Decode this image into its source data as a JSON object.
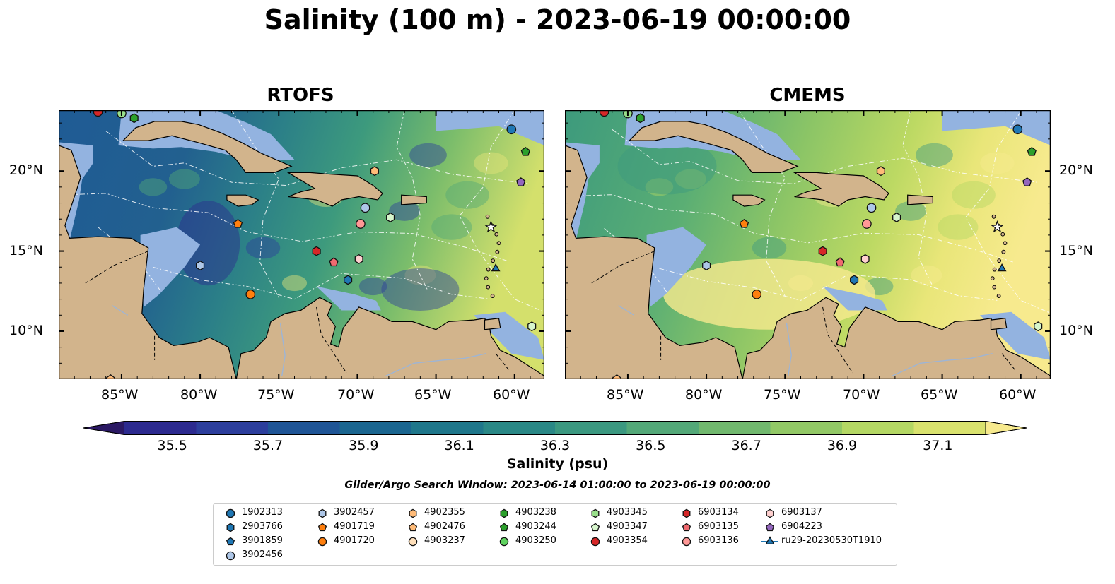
{
  "figure": {
    "title": "Salinity (100 m) - 2023-06-19 00:00:00"
  },
  "panels": [
    {
      "name": "RTOFS"
    },
    {
      "name": "CMEMS"
    }
  ],
  "axes": {
    "x_ticks": [
      "85°W",
      "80°W",
      "75°W",
      "70°W",
      "65°W",
      "60°W"
    ],
    "y_ticks": [
      "20°N",
      "15°N",
      "10°N"
    ]
  },
  "colorbar": {
    "label": "Salinity (psu)",
    "min": 35.5,
    "max": 37.1,
    "ticks": [
      "35.5",
      "35.7",
      "35.9",
      "36.1",
      "36.3",
      "36.5",
      "36.7",
      "36.9",
      "37.1"
    ],
    "colors": [
      "#2a1863",
      "#2c2a8f",
      "#2c3e9c",
      "#1f5596",
      "#1b6690",
      "#1f778b",
      "#2a8886",
      "#3b9880",
      "#53a878",
      "#71b86e",
      "#92c866",
      "#b4d764",
      "#d9e26e",
      "#f7ea8e"
    ]
  },
  "search_window": "Glider/Argo Search Window: 2023-06-14 01:00:00 to 2023-06-19 00:00:00",
  "legend": [
    {
      "label": "1902313",
      "marker": "circle",
      "color": "#1f77b4"
    },
    {
      "label": "2903766",
      "marker": "hexagon",
      "color": "#1f77b4"
    },
    {
      "label": "3901859",
      "marker": "pentagon",
      "color": "#1f77b4"
    },
    {
      "label": "3902456",
      "marker": "circle",
      "color": "#aec7e8"
    },
    {
      "label": "3902457",
      "marker": "hexagon",
      "color": "#aec7e8"
    },
    {
      "label": "4901719",
      "marker": "pentagon",
      "color": "#ff7f0e"
    },
    {
      "label": "4901720",
      "marker": "circle",
      "color": "#ff7f0e"
    },
    {
      "label": "4902355",
      "marker": "hexagon",
      "color": "#ffbb78"
    },
    {
      "label": "4902476",
      "marker": "pentagon",
      "color": "#ffbb78"
    },
    {
      "label": "4903237",
      "marker": "circle",
      "color": "#ffe0bb"
    },
    {
      "label": "4903238",
      "marker": "hexagon",
      "color": "#2ca02c"
    },
    {
      "label": "4903244",
      "marker": "pentagon",
      "color": "#2ca02c"
    },
    {
      "label": "4903250",
      "marker": "circle",
      "color": "#5fd35f"
    },
    {
      "label": "4903345",
      "marker": "hexagon",
      "color": "#98df8a"
    },
    {
      "label": "4903347",
      "marker": "pentagon",
      "color": "#d6f5cc"
    },
    {
      "label": "4903354",
      "marker": "circle",
      "color": "#d62728"
    },
    {
      "label": "6903134",
      "marker": "hexagon",
      "color": "#d62728"
    },
    {
      "label": "6903135",
      "marker": "pentagon",
      "color": "#f06a70"
    },
    {
      "label": "6903136",
      "marker": "circle",
      "color": "#ff9896"
    },
    {
      "label": "6903137",
      "marker": "hexagon",
      "color": "#ffd0cf"
    },
    {
      "label": "6904223",
      "marker": "pentagon",
      "color": "#9467bd"
    },
    {
      "label": "ru29-20230530T1910",
      "marker": "triangle-line",
      "color": "#1f77b4"
    }
  ],
  "markers": [
    {
      "lon": -60.2,
      "lat": 22.6,
      "marker": "circle",
      "color": "#1f77b4"
    },
    {
      "lon": -59.3,
      "lat": 21.2,
      "marker": "pentagon",
      "color": "#2ca02c"
    },
    {
      "lon": -59.6,
      "lat": 19.3,
      "marker": "pentagon",
      "color": "#9467bd"
    },
    {
      "lon": -68.9,
      "lat": 20.0,
      "marker": "hexagon",
      "color": "#ffbb78"
    },
    {
      "lon": -69.5,
      "lat": 17.7,
      "marker": "circle",
      "color": "#aec7e8"
    },
    {
      "lon": -67.9,
      "lat": 17.1,
      "marker": "hexagon",
      "color": "#d6f5cc"
    },
    {
      "lon": -69.8,
      "lat": 16.7,
      "marker": "circle",
      "color": "#ff9896"
    },
    {
      "lon": -77.6,
      "lat": 16.7,
      "marker": "pentagon",
      "color": "#ff7f0e"
    },
    {
      "lon": -72.6,
      "lat": 15.0,
      "marker": "hexagon",
      "color": "#d62728"
    },
    {
      "lon": -71.5,
      "lat": 14.3,
      "marker": "pentagon",
      "color": "#f06a70"
    },
    {
      "lon": -69.9,
      "lat": 14.5,
      "marker": "hexagon",
      "color": "#ffd0cf"
    },
    {
      "lon": -70.6,
      "lat": 13.2,
      "marker": "hexagon",
      "color": "#1f77b4"
    },
    {
      "lon": -76.8,
      "lat": 12.3,
      "marker": "circle",
      "color": "#ff7f0e"
    },
    {
      "lon": -80.0,
      "lat": 14.1,
      "marker": "hexagon",
      "color": "#aec7e8"
    },
    {
      "lon": -61.2,
      "lat": 13.9,
      "marker": "triangle",
      "color": "#1f77b4"
    },
    {
      "lon": -61.5,
      "lat": 16.5,
      "marker": "star",
      "color": "#ffffff"
    },
    {
      "lon": -58.9,
      "lat": 10.3,
      "marker": "hexagon",
      "color": "#d6f5cc"
    },
    {
      "lon": -86.5,
      "lat": 23.7,
      "marker": "circle",
      "color": "#d62728"
    },
    {
      "lon": -85.0,
      "lat": 23.6,
      "marker": "circle",
      "color": "#98df8a"
    },
    {
      "lon": -84.2,
      "lat": 23.3,
      "marker": "hexagon",
      "color": "#2ca02c"
    },
    {
      "lon": -85.7,
      "lat": 7.0,
      "marker": "pentagon",
      "color": "#ffbb78"
    }
  ]
}
